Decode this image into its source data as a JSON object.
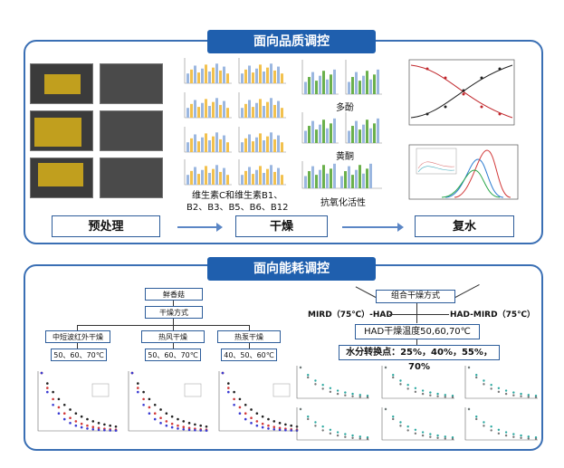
{
  "top_title": "面向品质调控",
  "bottom_title": "面向能耗调控",
  "stages": {
    "pretreatment": "预处理",
    "drying": "干燥",
    "rehydration": "复水"
  },
  "labels": {
    "vitamins_line1": "维生素C和维生素B1、",
    "vitamins_line2": "B2、B3、B5、B6、B12",
    "polyphenols": "多酚",
    "flavonoids": "黄酮",
    "antioxidant": "抗氧化活性"
  },
  "left_flow": {
    "root": "鲜香菇",
    "method": "干燥方式",
    "options": [
      "中短波红外干燥",
      "热风干燥",
      "热泵干燥"
    ],
    "temps": [
      "50、60、70℃",
      "50、60、70℃",
      "40、50、60℃"
    ]
  },
  "right_flow": {
    "root": "组合干燥方式",
    "left": "MIRD（75℃）-HAD",
    "right": "HAD-MIRD（75℃）",
    "temp": "HAD干燥温度50,60,70℃",
    "moisture": "水分转换点：25%，40%，55%，70%"
  }
}
